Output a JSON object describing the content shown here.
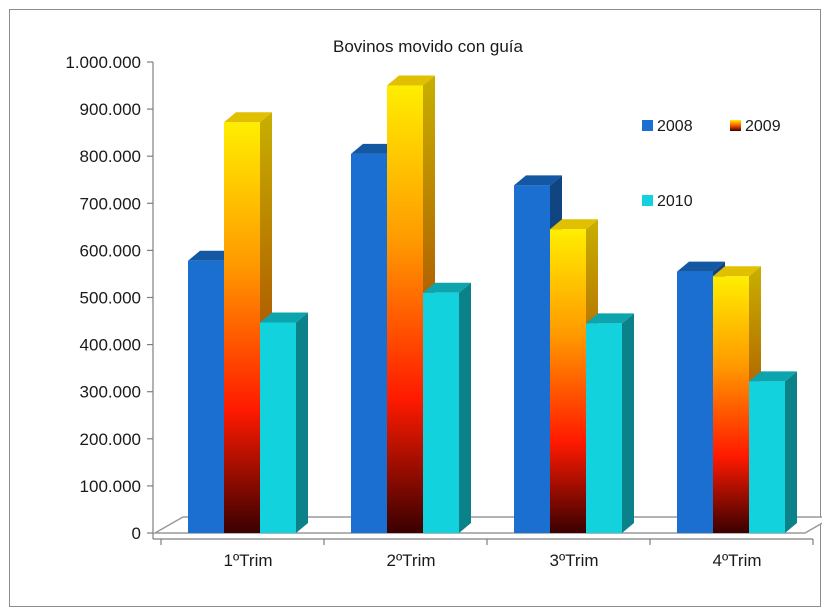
{
  "chart_data": {
    "type": "bar",
    "title": "Bovinos movido con guía",
    "categories": [
      "1ºTrim",
      "2ºTrim",
      "3ºTrim",
      "4ºTrim"
    ],
    "series": [
      {
        "name": "2008",
        "values": [
          578000,
          805000,
          738000,
          555000
        ],
        "color": "#1a6fd0"
      },
      {
        "name": "2009",
        "values": [
          872000,
          950000,
          645000,
          545000
        ],
        "color": "#ffcc00"
      },
      {
        "name": "2010",
        "values": [
          447000,
          510000,
          445000,
          322000
        ],
        "color": "#12d2de"
      }
    ],
    "y_ticks": [
      "0",
      "100.000",
      "200.000",
      "300.000",
      "400.000",
      "500.000",
      "600.000",
      "700.000",
      "800.000",
      "900.000",
      "1.000.000"
    ],
    "ylim": [
      0,
      1000000
    ],
    "legend_position": "right",
    "grid": false
  }
}
